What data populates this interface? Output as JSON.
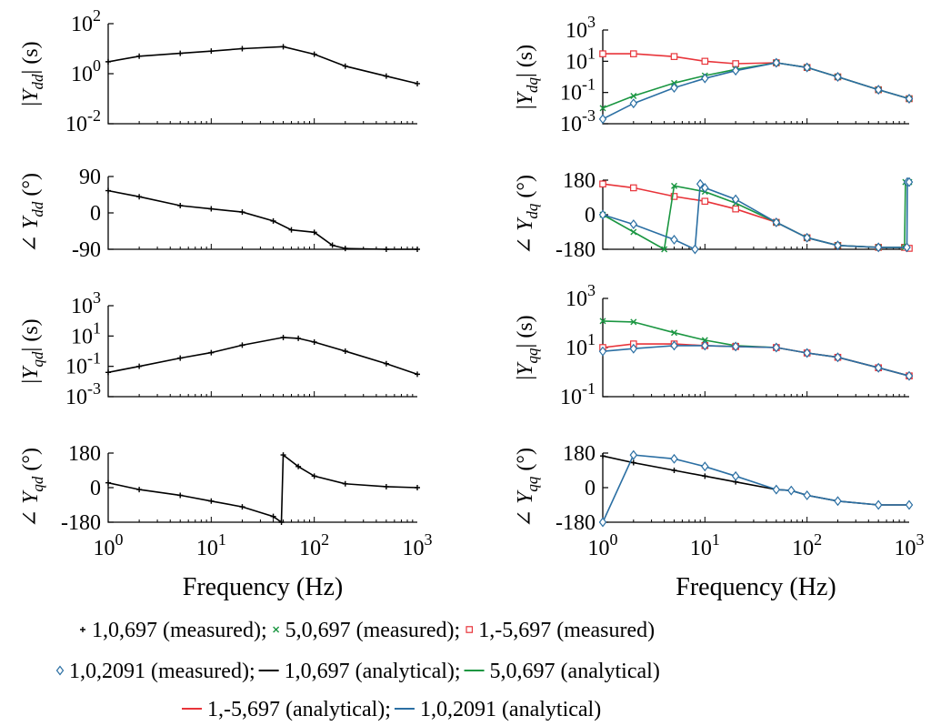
{
  "figure": {
    "legend": {
      "line1": [
        "1,0,697 (measured); ",
        "5,0,697 (measured); ",
        "1,-5,697 (measured)"
      ],
      "line2": [
        "1,0,2091 (measured); ",
        "1,0,697 (analytical); ",
        "5,0,697 (analytical)"
      ],
      "line3": [
        "1,-5,697 (analytical); ",
        "1,0,2091 (analytical)"
      ]
    }
  },
  "series_styles": [
    {
      "name": "1,0,697 (measured)",
      "color": "#000000",
      "marker": "plus"
    },
    {
      "name": "5,0,697 (measured)",
      "color": "#1a9641",
      "marker": "cross"
    },
    {
      "name": "1,-5,697 (measured)",
      "color": "#e8343a",
      "marker": "square"
    },
    {
      "name": "1,0,2091 (measured)",
      "color": "#2b6fa3",
      "marker": "diamond"
    },
    {
      "name": "1,0,697 (analytical)",
      "color": "#000000",
      "marker": "line"
    },
    {
      "name": "5,0,697 (analytical)",
      "color": "#1a9641",
      "marker": "line"
    },
    {
      "name": "1,-5,697 (analytical)",
      "color": "#e8343a",
      "marker": "line"
    },
    {
      "name": "1,0,2091 (analytical)",
      "color": "#2b6fa3",
      "marker": "line"
    }
  ],
  "chart_data": [
    {
      "id": "Ydd_mag",
      "type": "line",
      "xlog": true,
      "ylog": true,
      "xlim": [
        1,
        1000
      ],
      "ylim": [
        0.01,
        100
      ],
      "ylabel": "|Y_dd| (s)",
      "yticks": [
        {
          "v": 0.01,
          "base": "10",
          "exp": "-2"
        },
        {
          "v": 1,
          "base": "10",
          "exp": "0"
        },
        {
          "v": 100,
          "base": "10",
          "exp": "2"
        }
      ],
      "xticks": [],
      "series": [
        {
          "name": "1,0,697",
          "x": [
            1,
            2,
            5,
            10,
            20,
            50,
            100,
            200,
            500,
            1000
          ],
          "y": [
            3,
            5,
            6.5,
            8,
            10,
            12,
            6,
            2,
            0.8,
            0.4
          ]
        }
      ]
    },
    {
      "id": "Ydq_mag",
      "type": "line",
      "xlog": true,
      "ylog": true,
      "xlim": [
        1,
        1000
      ],
      "ylim": [
        0.001,
        1000
      ],
      "ylabel": "|Y_dq| (s)",
      "yticks": [
        {
          "v": 0.001,
          "base": "10",
          "exp": "-3"
        },
        {
          "v": 0.1,
          "base": "10",
          "exp": "-1"
        },
        {
          "v": 10,
          "base": "10",
          "exp": "1"
        },
        {
          "v": 1000,
          "base": "10",
          "exp": "3"
        }
      ],
      "xticks": [],
      "series": [
        {
          "name": "1,-5,697",
          "x": [
            1,
            2,
            5,
            10,
            20,
            50,
            100,
            200,
            500,
            1000
          ],
          "y": [
            30,
            30,
            20,
            10,
            7,
            8,
            4,
            1,
            0.15,
            0.04
          ]
        },
        {
          "name": "5,0,697",
          "x": [
            1,
            2,
            5,
            10,
            20,
            50,
            100,
            200,
            500,
            1000
          ],
          "y": [
            0.01,
            0.06,
            0.4,
            1.2,
            3,
            8,
            4,
            1,
            0.15,
            0.04
          ]
        },
        {
          "name": "1,0,2091",
          "x": [
            1,
            2,
            5,
            10,
            20,
            50,
            100,
            200,
            500,
            1000
          ],
          "y": [
            0.002,
            0.02,
            0.2,
            0.8,
            2.5,
            8,
            4,
            1,
            0.15,
            0.04
          ]
        }
      ]
    },
    {
      "id": "Ydd_phase",
      "type": "line",
      "xlog": true,
      "ylog": false,
      "xlim": [
        1,
        1000
      ],
      "ylim": [
        -90,
        90
      ],
      "ylabel": "∠ Y_dd (°)",
      "yticks": [
        {
          "v": 90,
          "label": "90"
        },
        {
          "v": 0,
          "label": "0"
        },
        {
          "v": -90,
          "label": "-90"
        }
      ],
      "xticks": [],
      "series": [
        {
          "name": "1,0,697",
          "x": [
            1,
            2,
            5,
            10,
            20,
            40,
            60,
            100,
            150,
            200,
            500,
            1000
          ],
          "y": [
            55,
            40,
            18,
            10,
            2,
            -20,
            -42,
            -48,
            -80,
            -88,
            -90,
            -90
          ]
        }
      ]
    },
    {
      "id": "Ydq_phase",
      "type": "line",
      "xlog": true,
      "ylog": false,
      "xlim": [
        1,
        1000
      ],
      "ylim": [
        -180,
        180
      ],
      "ylabel": "∠ Y_dq (°)",
      "yticks": [
        {
          "v": 180,
          "label": "180"
        },
        {
          "v": 0,
          "label": "0"
        },
        {
          "v": -180,
          "label": "-180"
        }
      ],
      "xticks": [],
      "series": [
        {
          "name": "1,-5,697",
          "x": [
            1,
            2,
            5,
            10,
            20,
            50,
            100,
            200,
            500,
            900,
            1000
          ],
          "y": [
            160,
            140,
            95,
            70,
            30,
            -40,
            -120,
            -160,
            -170,
            -170,
            -175
          ]
        },
        {
          "name": "5,0,697",
          "x": [
            1,
            2,
            4,
            5,
            10,
            20,
            50,
            100,
            200,
            500,
            900,
            920,
            1000
          ],
          "y": [
            0,
            -90,
            -180,
            150,
            120,
            60,
            -40,
            -120,
            -160,
            -170,
            -170,
            170,
            170
          ]
        },
        {
          "name": "1,0,2091",
          "x": [
            1,
            2,
            5,
            8,
            9,
            10,
            20,
            50,
            100,
            200,
            500,
            950,
            960,
            1000
          ],
          "y": [
            0,
            -50,
            -130,
            -180,
            160,
            140,
            80,
            -40,
            -120,
            -160,
            -170,
            -170,
            170,
            170
          ]
        }
      ]
    },
    {
      "id": "Yqd_mag",
      "type": "line",
      "xlog": true,
      "ylog": true,
      "xlim": [
        1,
        1000
      ],
      "ylim": [
        0.001,
        1000
      ],
      "ylabel": "|Y_qd| (s)",
      "yticks": [
        {
          "v": 0.001,
          "base": "10",
          "exp": "-3"
        },
        {
          "v": 0.1,
          "base": "10",
          "exp": "-1"
        },
        {
          "v": 10,
          "base": "10",
          "exp": "1"
        },
        {
          "v": 1000,
          "base": "10",
          "exp": "3"
        }
      ],
      "xticks": [],
      "series": [
        {
          "name": "1,0,697",
          "x": [
            1,
            2,
            5,
            10,
            20,
            50,
            70,
            100,
            200,
            500,
            1000
          ],
          "y": [
            0.04,
            0.1,
            0.35,
            0.8,
            2.5,
            8,
            7,
            4,
            1,
            0.15,
            0.03
          ]
        }
      ]
    },
    {
      "id": "Yqq_mag",
      "type": "line",
      "xlog": true,
      "ylog": true,
      "xlim": [
        1,
        1000
      ],
      "ylim": [
        0.1,
        1000
      ],
      "ylabel": "|Y_qq| (s)",
      "yticks": [
        {
          "v": 0.1,
          "base": "10",
          "exp": "-1"
        },
        {
          "v": 10,
          "base": "10",
          "exp": "1"
        },
        {
          "v": 1000,
          "base": "10",
          "exp": "3"
        }
      ],
      "xticks": [],
      "series": [
        {
          "name": "5,0,697",
          "x": [
            1,
            2,
            5,
            10,
            20,
            50,
            100,
            200,
            500,
            1000
          ],
          "y": [
            120,
            110,
            40,
            20,
            12,
            10,
            6,
            4,
            1.5,
            0.7
          ]
        },
        {
          "name": "1,-5,697",
          "x": [
            1,
            2,
            5,
            10,
            20,
            50,
            100,
            200,
            500,
            1000
          ],
          "y": [
            10,
            14,
            14,
            12,
            11,
            10,
            6,
            4,
            1.5,
            0.7
          ]
        },
        {
          "name": "1,0,2091",
          "x": [
            1,
            2,
            5,
            10,
            20,
            50,
            100,
            200,
            500,
            1000
          ],
          "y": [
            7,
            9,
            12,
            12,
            11,
            10,
            6,
            4,
            1.5,
            0.7
          ]
        }
      ]
    },
    {
      "id": "Yqd_phase",
      "type": "line",
      "xlog": true,
      "ylog": false,
      "xlim": [
        1,
        1000
      ],
      "ylim": [
        -180,
        180
      ],
      "ylabel": "∠ Y_qd (°)",
      "yticks": [
        {
          "v": 180,
          "label": "180"
        },
        {
          "v": 0,
          "label": "0"
        },
        {
          "v": -180,
          "label": "-180"
        }
      ],
      "xticks": [
        {
          "v": 1,
          "base": "10",
          "exp": "0"
        },
        {
          "v": 10,
          "base": "10",
          "exp": "1"
        },
        {
          "v": 100,
          "base": "10",
          "exp": "2"
        },
        {
          "v": 1000,
          "base": "10",
          "exp": "3"
        }
      ],
      "xlabel": "Frequency (Hz)",
      "series": [
        {
          "name": "1,0,697",
          "x": [
            1,
            2,
            5,
            10,
            20,
            40,
            48,
            50,
            70,
            100,
            200,
            500,
            1000
          ],
          "y": [
            25,
            -10,
            -40,
            -70,
            -100,
            -150,
            -180,
            170,
            110,
            60,
            20,
            5,
            0
          ]
        }
      ]
    },
    {
      "id": "Yqq_phase",
      "type": "line",
      "xlog": true,
      "ylog": false,
      "xlim": [
        1,
        1000
      ],
      "ylim": [
        -180,
        180
      ],
      "ylabel": "∠ Y_qq (°)",
      "yticks": [
        {
          "v": 180,
          "label": "180"
        },
        {
          "v": 0,
          "label": "0"
        },
        {
          "v": -180,
          "label": "-180"
        }
      ],
      "xticks": [
        {
          "v": 1,
          "base": "10",
          "exp": "0"
        },
        {
          "v": 10,
          "base": "10",
          "exp": "1"
        },
        {
          "v": 100,
          "base": "10",
          "exp": "2"
        },
        {
          "v": 1000,
          "base": "10",
          "exp": "3"
        }
      ],
      "xlabel": "Frequency (Hz)",
      "series": [
        {
          "name": "1,0,697",
          "x": [
            1,
            2,
            5,
            10,
            20,
            50,
            70,
            100,
            200,
            500,
            1000
          ],
          "y": [
            165,
            130,
            90,
            60,
            30,
            -10,
            -15,
            -40,
            -70,
            -90,
            -90
          ]
        },
        {
          "name": "1,0,2091",
          "x": [
            1,
            2,
            5,
            10,
            20,
            50,
            70,
            100,
            200,
            500,
            1000
          ],
          "y": [
            -180,
            170,
            150,
            110,
            60,
            -10,
            -15,
            -40,
            -70,
            -90,
            -90
          ]
        }
      ]
    }
  ]
}
